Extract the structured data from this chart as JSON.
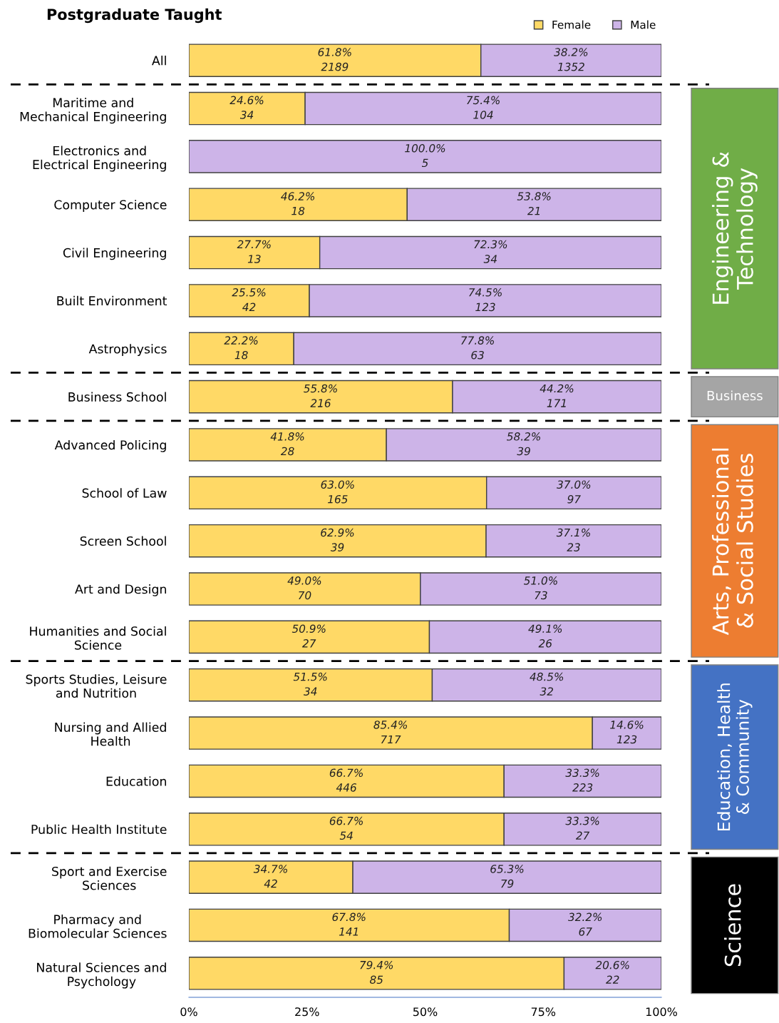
{
  "chart_data": {
    "type": "bar",
    "orientation": "horizontal",
    "stacked": true,
    "title": "Postgraduate Taught",
    "categories": [
      "All",
      "Maritime and\nMechanical Engineering",
      "Electronics and\nElectrical Engineering",
      "Computer Science",
      "Civil Engineering",
      "Built Environment",
      "Astrophysics",
      "Business School",
      "Advanced Policing",
      "School of Law",
      "Screen School",
      "Art and Design",
      "Humanities and Social\nScience",
      "Sports Studies, Leisure\nand Nutrition",
      "Nursing and Allied\nHealth",
      "Education",
      "Public Health Institute",
      "Sport and Exercise\nSciences",
      "Pharmacy and\nBiomolecular Sciences",
      "Natural Sciences and\nPsychology"
    ],
    "series": [
      {
        "name": "Female",
        "color": "#ffd966",
        "values": [
          61.8,
          24.6,
          0,
          46.2,
          27.7,
          25.5,
          22.2,
          55.8,
          41.8,
          63.0,
          62.9,
          49.0,
          50.9,
          51.5,
          85.4,
          66.7,
          66.7,
          34.7,
          67.8,
          79.4
        ],
        "value_labels": [
          "61.8%\n2189",
          "24.6%\n34",
          null,
          "46.2%\n18",
          "27.7%\n13",
          "25.5%\n42",
          "22.2%\n18",
          "55.8%\n216",
          "41.8%\n28",
          "63.0%\n165",
          "62.9%\n39",
          "49.0%\n70",
          "50.9%\n27",
          "51.5%\n34",
          "85.4%\n717",
          "66.7%\n446",
          "66.7%\n54",
          "34.7%\n42",
          "67.8%\n141",
          "79.4%\n85"
        ]
      },
      {
        "name": "Male",
        "color": "#cdb4e8",
        "values": [
          38.2,
          75.4,
          100.0,
          53.8,
          72.3,
          74.5,
          77.8,
          44.2,
          58.2,
          37.0,
          37.1,
          51.0,
          49.1,
          48.5,
          14.6,
          33.3,
          33.3,
          65.3,
          32.2,
          20.6
        ],
        "value_labels": [
          "38.2%\n1352",
          "75.4%\n104",
          "100.0%\n5",
          "53.8%\n21",
          "72.3%\n34",
          "74.5%\n123",
          "77.8%\n63",
          "44.2%\n171",
          "58.2%\n39",
          "37.0%\n97",
          "37.1%\n23",
          "51.0%\n73",
          "49.1%\n26",
          "48.5%\n32",
          "14.6%\n123",
          "33.3%\n223",
          "33.3%\n27",
          "65.3%\n79",
          "32.2%\n67",
          "20.6%\n22"
        ]
      }
    ],
    "xlim": [
      0,
      100
    ],
    "xticks": [
      {
        "value": 0,
        "label": "0%"
      },
      {
        "value": 25,
        "label": "25%"
      },
      {
        "value": 50,
        "label": "50%"
      },
      {
        "value": 75,
        "label": "75%"
      },
      {
        "value": 100,
        "label": "100%"
      }
    ],
    "legend": "top right",
    "annotations": [
      "Engineering &\nTechnology",
      "Business",
      "Arts, Professional\n& Social Studies",
      "Education, Health\n& Community",
      "Science"
    ]
  }
}
